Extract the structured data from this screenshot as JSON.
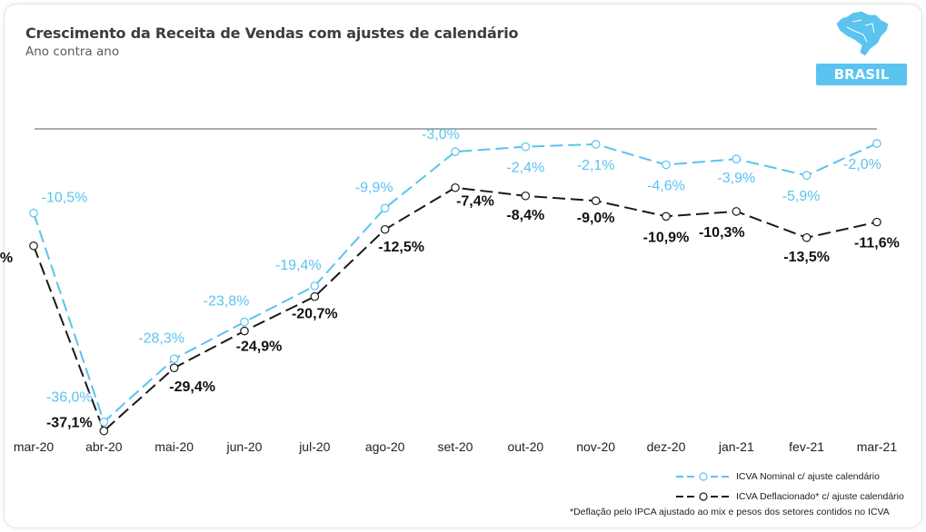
{
  "header": {
    "title": "Crescimento da Receita de Vendas com ajustes de calendário",
    "subtitle": "Ano contra ano",
    "region_badge": "BRASIL",
    "region_icon": "brazil-map-icon"
  },
  "colors": {
    "nominal": "#5bc3ef",
    "deflated": "#1a1a1a",
    "axis_line": "#7a7a7a"
  },
  "chart_data": {
    "type": "line",
    "title": "Crescimento da Receita de Vendas com ajustes de calendário",
    "subtitle": "Ano contra ano",
    "categories": [
      "mar-20",
      "abr-20",
      "mai-20",
      "jun-20",
      "jul-20",
      "ago-20",
      "set-20",
      "out-20",
      "nov-20",
      "dez-20",
      "jan-21",
      "fev-21",
      "mar-21"
    ],
    "series": [
      {
        "name": "ICVA Nominal c/ ajuste calendário",
        "values": [
          -10.5,
          -36.0,
          -28.3,
          -23.8,
          -19.4,
          -9.9,
          -3.0,
          -2.4,
          -2.1,
          -4.6,
          -3.9,
          -5.9,
          -2.0
        ],
        "labels": [
          "-10,5%",
          "-36,0%",
          "-28,3%",
          "-23,8%",
          "-19,4%",
          "-9,9%",
          "-3,0%",
          "-2,4%",
          "-2,1%",
          "-4,6%",
          "-3,9%",
          "-5,9%",
          "-2,0%"
        ]
      },
      {
        "name": "ICVA Deflacionado* c/ ajuste calendário",
        "values": [
          -14.5,
          -37.1,
          -29.4,
          -24.9,
          -20.7,
          -12.5,
          -7.4,
          -8.4,
          -9.0,
          -10.9,
          -10.3,
          -13.5,
          -11.6
        ],
        "labels": [
          "%",
          "-37,1%",
          "-29,4%",
          "-24,9%",
          "-20,7%",
          "-12,5%",
          "-7,4%",
          "-8,4%",
          "-9,0%",
          "-10,9%",
          "-10,3%",
          "-13,5%",
          "-11,6%"
        ]
      }
    ],
    "ylim": [
      -38,
      0
    ],
    "grid": false,
    "legend_position": "bottom-right"
  },
  "legend": {
    "nominal": "ICVA Nominal c/ ajuste calendário",
    "deflated": "ICVA Deflacionado* c/ ajuste calendário"
  },
  "footnote": "*Deflação pelo IPCA ajustado ao mix e pesos dos setores contidos no ICVA"
}
